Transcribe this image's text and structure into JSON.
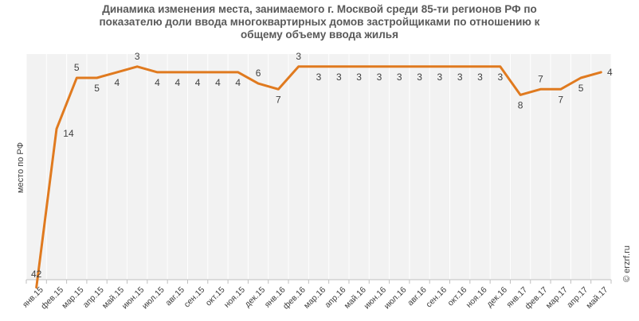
{
  "chart_data": {
    "type": "line",
    "title_lines": [
      "Динамика изменения места, занимаемого г. Москвой среди 85-ти регионов РФ по",
      "показателю доли ввода многоквартирных домов застройщиками по отношению к",
      "общему объему ввода жилья"
    ],
    "ylabel": "место по РФ",
    "y_inverted": true,
    "ylim": [
      1,
      44
    ],
    "grid": "vertical",
    "categories": [
      "янв.15",
      "фев.15",
      "мар.15",
      "апр.15",
      "май.15",
      "июн.15",
      "июл.15",
      "авг.15",
      "сен.15",
      "окт.15",
      "ноя.15",
      "дек.15",
      "янв.16",
      "фев.16",
      "мар.16",
      "апр.16",
      "май.16",
      "июн.16",
      "июл.16",
      "авг.16",
      "сен.16",
      "окт.16",
      "ноя.16",
      "дек.16",
      "янв.17",
      "фев.17",
      "мар.17",
      "апр.17",
      "май.17"
    ],
    "series": [
      {
        "color": "#E07A1F",
        "values": [
          42,
          14,
          5,
          5,
          4,
          3,
          4,
          4,
          4,
          4,
          4,
          6,
          7,
          3,
          3,
          3,
          3,
          3,
          3,
          3,
          3,
          3,
          3,
          3,
          8,
          7,
          7,
          5,
          4
        ],
        "labels": [
          "42",
          "14",
          "5",
          "5",
          "4",
          "3",
          "4",
          "4",
          "4",
          "4",
          "4",
          "6",
          "7",
          "3",
          "3",
          "3",
          "3",
          "3",
          "3",
          "3",
          "3",
          "3",
          "3",
          "3",
          "8",
          "7",
          "7",
          "5",
          "4"
        ]
      }
    ]
  },
  "watermark": "© erzrf.ru"
}
